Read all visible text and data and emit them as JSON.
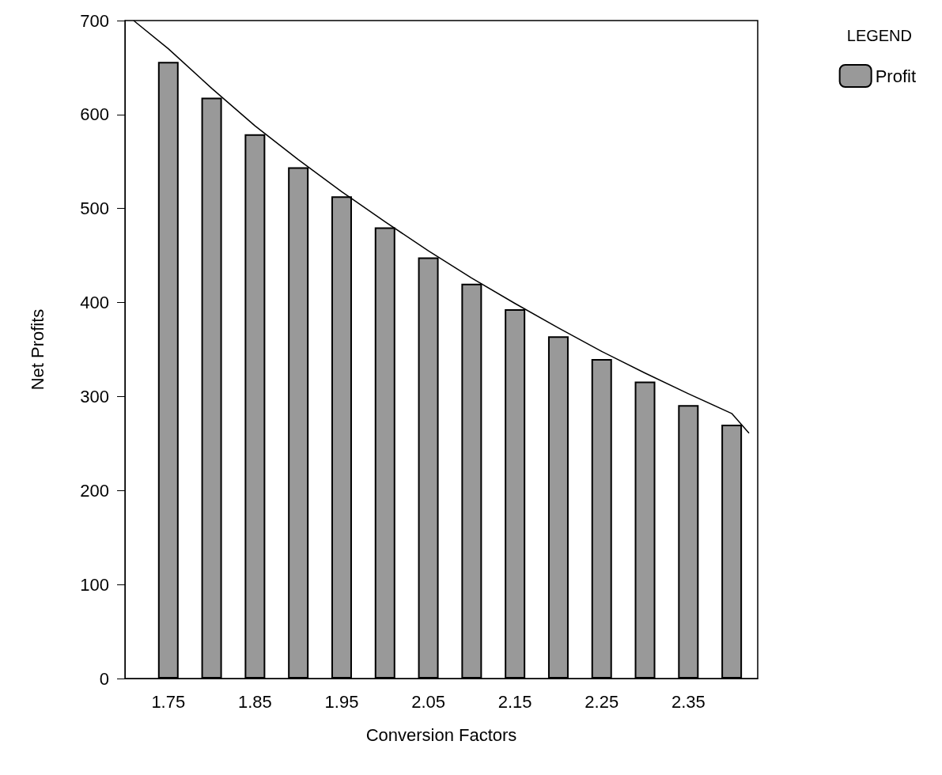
{
  "chart_data": {
    "type": "bar",
    "xlabel": "Conversion Factors",
    "ylabel": "Net Profits",
    "legend_title": "LEGEND",
    "legend": "top right",
    "x": [
      1.75,
      1.8,
      1.85,
      1.9,
      1.95,
      2.0,
      2.05,
      2.1,
      2.15,
      2.2,
      2.25,
      2.3,
      2.35,
      2.4
    ],
    "series": [
      {
        "name": "Profit",
        "color": "#999999",
        "values": [
          656,
          618,
          579,
          544,
          513,
          480,
          448,
          420,
          393,
          364,
          340,
          316,
          291,
          270
        ]
      },
      {
        "type": "line",
        "color": "#000000",
        "line_style": "solid",
        "marker": "none",
        "x": [
          1.71,
          1.75,
          1.8,
          1.85,
          1.9,
          1.95,
          2.0,
          2.05,
          2.1,
          2.15,
          2.2,
          2.25,
          2.3,
          2.35,
          2.4,
          2.42
        ],
        "values": [
          700,
          670,
          628,
          588,
          552,
          518,
          486,
          455,
          426,
          399,
          373,
          348,
          325,
          303,
          282,
          261
        ]
      }
    ],
    "xlim": [
      1.7,
      2.43
    ],
    "xticks": [
      1.75,
      {
        "value": 1.8,
        "label": null
      },
      1.85,
      {
        "value": 1.9,
        "label": null
      },
      1.95,
      {
        "value": 2.0,
        "label": null
      },
      2.05,
      {
        "value": 2.1,
        "label": null
      },
      2.15,
      {
        "value": 2.2,
        "label": null
      },
      2.25,
      {
        "value": 2.3,
        "label": null
      },
      2.35,
      {
        "value": 2.4,
        "label": null
      }
    ],
    "ylim": [
      0,
      700
    ],
    "yticks": [
      0,
      100,
      200,
      300,
      400,
      500,
      600,
      700
    ],
    "grid": false
  }
}
